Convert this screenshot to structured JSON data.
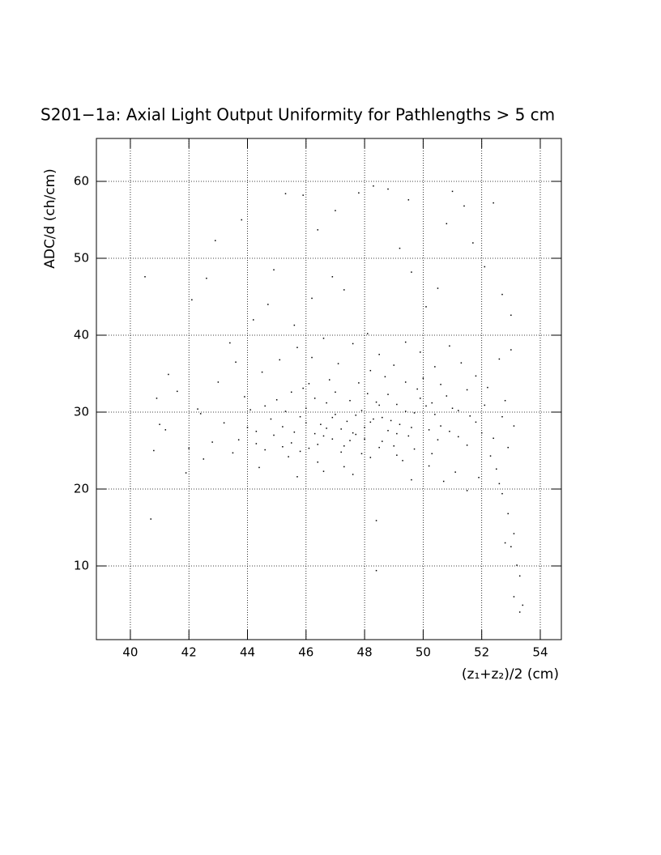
{
  "chart_data": {
    "type": "scatter",
    "title": "S201−1a: Axial Light Output Uniformity for Pathlengths > 5 cm",
    "x_label": "(z₁+z₂)/2 (cm)",
    "y_label": "ADC/d (ch/cm)",
    "xlim": [
      38.84,
      54.72
    ],
    "ylim": [
      0.42,
      65.58
    ],
    "xticks": [
      40,
      42,
      44,
      46,
      48,
      50,
      52,
      54
    ],
    "yticks": [
      10,
      20,
      30,
      40,
      50,
      60
    ],
    "grid": true,
    "color": "#000000",
    "x": [
      45.2,
      45.8,
      46.3,
      46.9,
      47.4,
      47.9,
      48.3,
      48.8,
      49.2,
      49.7,
      50.1,
      50.6,
      46.1,
      46.7,
      47.2,
      47.7,
      48.1,
      48.6,
      49.1,
      49.5,
      44.3,
      44.8,
      45.5,
      46.0,
      46.5,
      47.0,
      47.5,
      48.0,
      48.5,
      49.0,
      43.2,
      43.7,
      44.1,
      44.6,
      45.0,
      45.4,
      45.9,
      46.4,
      46.8,
      47.3,
      47.8,
      48.2,
      48.7,
      49.3,
      49.8,
      50.3,
      50.8,
      51.2,
      51.6,
      52.0,
      42.4,
      42.8,
      43.5,
      43.9,
      44.5,
      45.1,
      45.7,
      46.2,
      46.6,
      47.1,
      47.6,
      48.1,
      48.5,
      49.0,
      49.4,
      49.9,
      50.4,
      50.9,
      51.3,
      51.8,
      52.2,
      52.6,
      53.0,
      52.8,
      53.1,
      52.9,
      52.5,
      52.7,
      52.9,
      53.1,
      53.0,
      53.2,
      53.3,
      53.1,
      53.4,
      53.3,
      52.8,
      52.6,
      52.3,
      51.9,
      51.5,
      51.1,
      50.7,
      50.2,
      41.0,
      40.8,
      40.7,
      41.3,
      40.5,
      41.9,
      42.1,
      42.6,
      42.9,
      43.4,
      43.8,
      44.2,
      44.9,
      45.3,
      45.9,
      46.4,
      46.9,
      47.3,
      47.8,
      48.3,
      48.8,
      49.2,
      49.6,
      50.1,
      50.5,
      51.0,
      51.4,
      51.7,
      52.1,
      52.4,
      52.7,
      53.0,
      50.8,
      49.5,
      47.0,
      46.2,
      45.6,
      44.7,
      43.6,
      43.0,
      42.3,
      41.6,
      41.2,
      40.9,
      42.0,
      42.5,
      44.4,
      45.7,
      46.6,
      47.6,
      48.4,
      48.4,
      49.6,
      50.5,
      51.0,
      51.5,
      45.3,
      45.6,
      46.0,
      46.3,
      46.6,
      46.9,
      47.2,
      47.5,
      47.7,
      48.0,
      48.2,
      48.4,
      48.6,
      48.9,
      49.1,
      49.4,
      49.6,
      49.9,
      50.2,
      50.4,
      44.0,
      44.3,
      44.6,
      44.9,
      45.2,
      45.5,
      45.8,
      46.1,
      46.4,
      46.7,
      47.0,
      47.3,
      47.6,
      47.9,
      48.2,
      48.5,
      48.8,
      49.1,
      49.4,
      49.7,
      50.0,
      50.3,
      50.6,
      50.9,
      51.2,
      51.5,
      51.8,
      52.1,
      52.4,
      52.7
    ],
    "values": [
      28.1,
      29.4,
      27.2,
      26.5,
      28.8,
      30.2,
      29.1,
      27.6,
      28.4,
      29.9,
      30.8,
      28.2,
      25.3,
      31.2,
      24.8,
      27.1,
      32.4,
      26.2,
      31.0,
      26.9,
      27.5,
      29.1,
      26.0,
      30.5,
      28.4,
      29.7,
      26.3,
      28.0,
      30.9,
      25.6,
      28.6,
      26.4,
      30.3,
      25.1,
      31.6,
      24.2,
      33.1,
      23.5,
      34.2,
      22.9,
      33.8,
      24.1,
      34.6,
      23.7,
      33.0,
      24.6,
      32.1,
      26.8,
      29.5,
      27.3,
      29.8,
      26.1,
      24.7,
      32.0,
      35.2,
      36.8,
      38.4,
      37.1,
      39.6,
      36.3,
      38.9,
      40.2,
      37.5,
      36.1,
      39.1,
      37.8,
      35.9,
      38.6,
      36.4,
      34.7,
      33.2,
      36.9,
      38.1,
      31.5,
      28.2,
      25.4,
      22.6,
      19.4,
      16.8,
      14.2,
      12.5,
      10.1,
      8.7,
      6.0,
      4.9,
      4.0,
      13.0,
      20.7,
      24.3,
      21.5,
      19.8,
      22.2,
      21.0,
      23.0,
      28.4,
      25.0,
      16.1,
      34.9,
      47.6,
      22.1,
      44.6,
      47.4,
      52.3,
      39.0,
      55.0,
      42.0,
      48.5,
      58.4,
      58.2,
      53.7,
      47.6,
      45.9,
      58.5,
      59.4,
      59.0,
      51.3,
      48.2,
      43.7,
      46.1,
      58.7,
      56.8,
      52.0,
      48.9,
      57.2,
      45.3,
      42.6,
      54.5,
      57.6,
      56.2,
      44.8,
      41.3,
      44.0,
      36.5,
      33.9,
      30.4,
      32.7,
      27.7,
      31.8,
      25.3,
      23.9,
      22.8,
      21.6,
      22.3,
      21.9,
      15.9,
      9.4,
      21.2,
      26.4,
      30.5,
      32.9,
      30.1,
      27.4,
      28.6,
      31.8,
      26.9,
      29.3,
      27.8,
      31.5,
      29.6,
      26.5,
      28.7,
      31.3,
      29.3,
      28.9,
      27.2,
      30.1,
      28.0,
      31.8,
      27.7,
      29.7,
      28.0,
      25.9,
      30.8,
      27.0,
      25.5,
      32.6,
      24.9,
      33.7,
      25.8,
      27.9,
      32.6,
      25.6,
      27.3,
      24.6,
      35.4,
      25.4,
      32.3,
      24.4,
      33.9,
      25.2,
      34.4,
      31.2,
      33.6,
      27.5,
      30.2,
      25.7,
      28.7,
      30.9,
      26.6,
      29.4
    ]
  }
}
